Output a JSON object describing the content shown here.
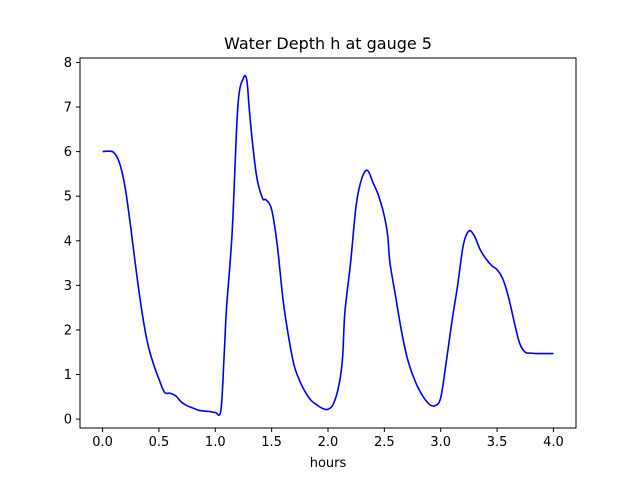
{
  "chart_data": {
    "type": "line",
    "title": "Water Depth h at gauge 5",
    "xlabel": "hours",
    "ylabel": "",
    "xlim": [
      -0.2,
      4.2
    ],
    "ylim": [
      -0.2,
      8.1
    ],
    "grid": false,
    "legend": "none",
    "xticks": [
      0.0,
      0.5,
      1.0,
      1.5,
      2.0,
      2.5,
      3.0,
      3.5,
      4.0
    ],
    "xtick_labels": [
      "0.0",
      "0.5",
      "1.0",
      "1.5",
      "2.0",
      "2.5",
      "3.0",
      "3.5",
      "4.0"
    ],
    "yticks": [
      0,
      1,
      2,
      3,
      4,
      5,
      6,
      7,
      8
    ],
    "ytick_labels": [
      "0",
      "1",
      "2",
      "3",
      "4",
      "5",
      "6",
      "7",
      "8"
    ],
    "series": [
      {
        "color": "#0000ff",
        "x": [
          0.0,
          0.05,
          0.1,
          0.15,
          0.2,
          0.25,
          0.3,
          0.35,
          0.4,
          0.45,
          0.5,
          0.55,
          0.6,
          0.65,
          0.7,
          0.75,
          0.8,
          0.85,
          0.9,
          0.95,
          1.0,
          1.05,
          1.08,
          1.1,
          1.15,
          1.2,
          1.25,
          1.28,
          1.3,
          1.33,
          1.37,
          1.42,
          1.45,
          1.5,
          1.55,
          1.6,
          1.65,
          1.7,
          1.75,
          1.8,
          1.85,
          1.9,
          1.95,
          2.0,
          2.05,
          2.1,
          2.13,
          2.15,
          2.2,
          2.25,
          2.3,
          2.35,
          2.4,
          2.45,
          2.5,
          2.53,
          2.55,
          2.6,
          2.65,
          2.7,
          2.75,
          2.8,
          2.85,
          2.9,
          2.95,
          3.0,
          3.05,
          3.1,
          3.15,
          3.2,
          3.25,
          3.3,
          3.35,
          3.4,
          3.45,
          3.5,
          3.55,
          3.6,
          3.65,
          3.7,
          3.75,
          3.8,
          3.85,
          3.9,
          3.95,
          4.0
        ],
        "y": [
          6.0,
          6.01,
          5.98,
          5.75,
          5.2,
          4.3,
          3.3,
          2.4,
          1.7,
          1.25,
          0.9,
          0.6,
          0.58,
          0.52,
          0.38,
          0.3,
          0.25,
          0.2,
          0.18,
          0.17,
          0.15,
          0.2,
          1.5,
          2.5,
          4.2,
          7.0,
          7.65,
          7.6,
          7.0,
          6.2,
          5.4,
          4.95,
          4.92,
          4.7,
          3.9,
          2.7,
          1.85,
          1.2,
          0.85,
          0.6,
          0.42,
          0.32,
          0.24,
          0.22,
          0.35,
          0.8,
          1.4,
          2.4,
          3.5,
          4.8,
          5.4,
          5.58,
          5.3,
          5.0,
          4.55,
          4.1,
          3.5,
          2.75,
          2.0,
          1.4,
          1.0,
          0.7,
          0.48,
          0.33,
          0.3,
          0.48,
          1.3,
          2.2,
          3.0,
          3.9,
          4.22,
          4.1,
          3.8,
          3.6,
          3.45,
          3.35,
          3.15,
          2.75,
          2.2,
          1.7,
          1.5,
          1.48,
          1.47,
          1.47,
          1.47,
          1.47
        ]
      }
    ]
  }
}
